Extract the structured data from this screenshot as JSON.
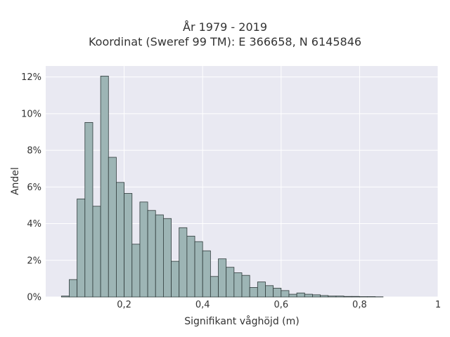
{
  "chart_data": {
    "type": "bar",
    "title_line1": "År 1979 - 2019",
    "title_line2": "Koordinat (Sweref 99 TM): E 366658, N 6145846",
    "xlabel": "Signifikant våghöjd (m)",
    "ylabel": "Andel",
    "xlim": [
      0.0,
      1.0
    ],
    "ylim": [
      0,
      0.126
    ],
    "bin_width": 0.02,
    "x_ticks": [
      0.2,
      0.4,
      0.6,
      0.8,
      1.0
    ],
    "x_tick_labels": [
      "0,2",
      "0,4",
      "0,6",
      "0,8",
      "1"
    ],
    "y_ticks": [
      0,
      0.02,
      0.04,
      0.06,
      0.08,
      0.1,
      0.12
    ],
    "y_tick_labels": [
      "0%",
      "2%",
      "4%",
      "6%",
      "8%",
      "10%",
      "12%"
    ],
    "grid": true,
    "bar_color": "#9db5b5",
    "bar_edge_color": "#2f3b3b",
    "plot_background": "#e9e9f2",
    "bins_start": [
      0.04,
      0.06,
      0.08,
      0.1,
      0.12,
      0.14,
      0.16,
      0.18,
      0.2,
      0.22,
      0.24,
      0.26,
      0.28,
      0.3,
      0.32,
      0.34,
      0.36,
      0.38,
      0.4,
      0.42,
      0.44,
      0.46,
      0.48,
      0.5,
      0.52,
      0.54,
      0.56,
      0.58,
      0.6,
      0.62,
      0.64,
      0.66,
      0.68,
      0.7,
      0.72,
      0.74,
      0.76,
      0.78,
      0.8,
      0.82,
      0.84
    ],
    "values": [
      0.0005,
      0.0095,
      0.0535,
      0.0952,
      0.0495,
      0.1205,
      0.0762,
      0.0625,
      0.0565,
      0.0288,
      0.0518,
      0.0472,
      0.0448,
      0.0428,
      0.0195,
      0.0378,
      0.0332,
      0.0302,
      0.0252,
      0.0112,
      0.0208,
      0.0162,
      0.0132,
      0.0118,
      0.0052,
      0.0082,
      0.0062,
      0.0048,
      0.0035,
      0.0015,
      0.0022,
      0.0015,
      0.0012,
      0.0008,
      0.0005,
      0.0005,
      0.0003,
      0.0003,
      0.0002,
      0.0002,
      0.0001
    ]
  }
}
